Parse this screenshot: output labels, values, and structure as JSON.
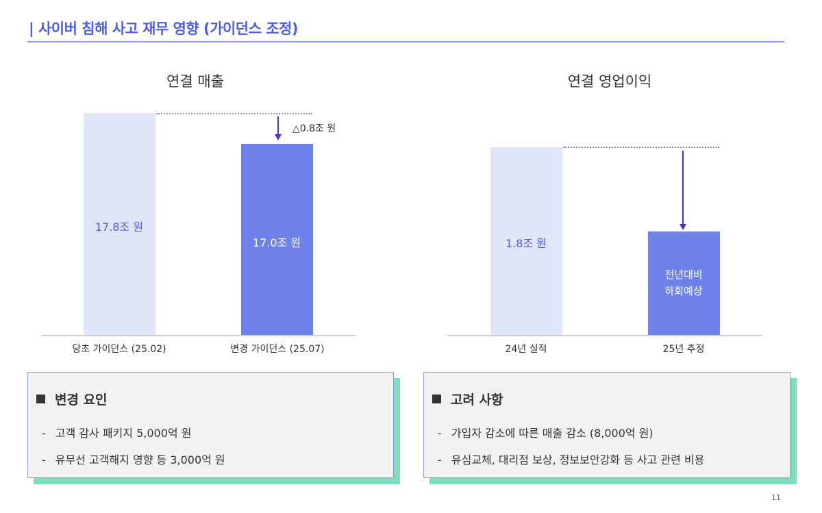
{
  "title": "| 사이버 침해 사고 재무 영향 (가이던스 조정)",
  "colors": {
    "accent": "#4a5cf0",
    "bar_light": "#e0e5f8",
    "bar_dark": "#6e82ea",
    "box_shadow": "#7fdcbf"
  },
  "revenue_chart": {
    "title": "연결 매출",
    "bars": [
      {
        "category": "당초 가이던스 (25.02)",
        "value": 17.8,
        "label": "17.8조 원"
      },
      {
        "category": "변경 가이던스 (25.07)",
        "value": 17.0,
        "label": "17.0조 원"
      }
    ],
    "delta_label": "△0.8조 원"
  },
  "op_income_chart": {
    "title": "연결 영업이익",
    "bars": [
      {
        "category": "24년 실적",
        "value": 1.8,
        "label": "1.8조 원"
      },
      {
        "category": "25년 추정",
        "label_line1": "전년대비",
        "label_line2": "하회예상"
      }
    ]
  },
  "boxes": [
    {
      "heading": "변경 요인",
      "items": [
        "고객 감사 패키지 5,000억 원",
        "유무선 고객해지 영향 등 3,000억 원"
      ]
    },
    {
      "heading": "고려 사항",
      "items": [
        "가입자 감소에 따른 매출 감소 (8,000억 원)",
        "유심교체, 대리점 보상, 정보보안강화 등 사고 관련 비용"
      ]
    }
  ],
  "dash": "-",
  "page_number": "11"
}
